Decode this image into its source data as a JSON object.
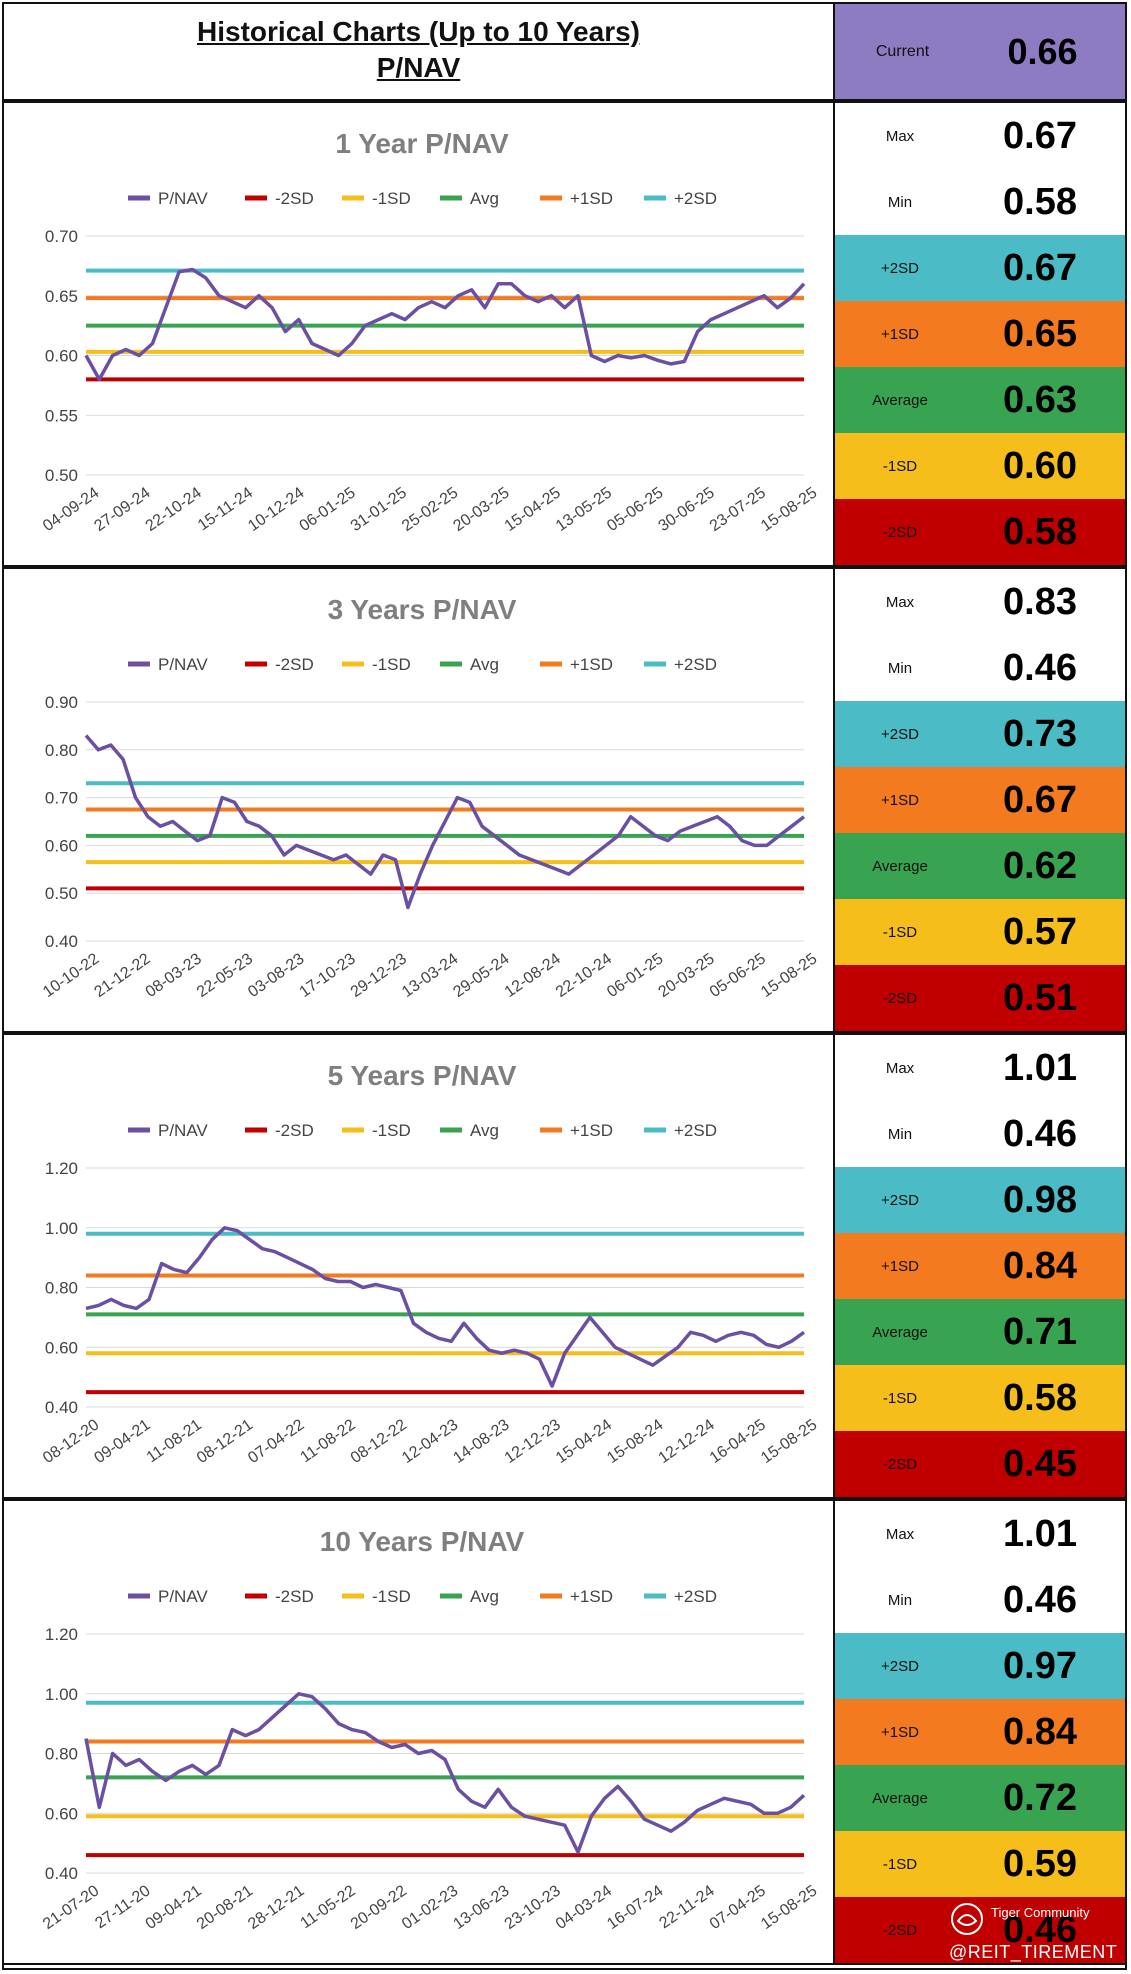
{
  "header": {
    "title": "Historical Charts (Up to 10 Years)",
    "subtitle": "P/NAV",
    "current_label": "Current",
    "current_value": "0.66"
  },
  "legend": [
    "P/NAV",
    "-2SD",
    "-1SD",
    "Avg",
    "+1SD",
    "+2SD"
  ],
  "colors": {
    "pnav": "#6a4fa3",
    "m2sd": "#c00000",
    "m1sd": "#f5be1a",
    "avg": "#38a351",
    "p1sd": "#f47a1f",
    "p2sd": "#4bbcc6",
    "current_bg": "#8e7cc3",
    "grid": "#d9d9d9"
  },
  "stat_labels": [
    "Max",
    "Min",
    "+2SD",
    "+1SD",
    "Average",
    "-1SD",
    "-2SD"
  ],
  "stat_colors": [
    "#ffffff",
    "#ffffff",
    "#4bbcc6",
    "#f47a1f",
    "#38a351",
    "#f5be1a",
    "#c00000"
  ],
  "watermark": {
    "brand": "Tiger Community",
    "handle": "@REIT_TIREMENT"
  },
  "chart_data": [
    {
      "type": "line",
      "title": "1 Year P/NAV",
      "ylim": [
        0.5,
        0.7
      ],
      "yticks": [
        "0.70",
        "0.65",
        "0.60",
        "0.55",
        "0.50"
      ],
      "ytick_values": [
        0.7,
        0.65,
        0.6,
        0.55,
        0.5
      ],
      "x_labels": [
        "04-09-24",
        "27-09-24",
        "22-10-24",
        "15-11-24",
        "10-12-24",
        "06-01-25",
        "31-01-25",
        "25-02-25",
        "20-03-25",
        "15-04-25",
        "13-05-25",
        "05-06-25",
        "30-06-25",
        "23-07-25",
        "15-08-25"
      ],
      "bands": {
        "m2sd": 0.58,
        "m1sd": 0.603,
        "avg": 0.625,
        "p1sd": 0.648,
        "p2sd": 0.671
      },
      "series_name": "P/NAV",
      "values": [
        0.6,
        0.58,
        0.6,
        0.605,
        0.6,
        0.61,
        0.64,
        0.67,
        0.672,
        0.665,
        0.65,
        0.645,
        0.64,
        0.65,
        0.64,
        0.62,
        0.63,
        0.61,
        0.605,
        0.6,
        0.61,
        0.625,
        0.63,
        0.635,
        0.63,
        0.64,
        0.645,
        0.64,
        0.65,
        0.655,
        0.64,
        0.66,
        0.66,
        0.65,
        0.645,
        0.65,
        0.64,
        0.65,
        0.6,
        0.595,
        0.6,
        0.598,
        0.6,
        0.596,
        0.593,
        0.595,
        0.62,
        0.63,
        0.635,
        0.64,
        0.645,
        0.65,
        0.64,
        0.648,
        0.66
      ],
      "stats": [
        "0.67",
        "0.58",
        "0.67",
        "0.65",
        "0.63",
        "0.60",
        "0.58"
      ]
    },
    {
      "type": "line",
      "title": "3 Years P/NAV",
      "ylim": [
        0.4,
        0.9
      ],
      "yticks": [
        "0.90",
        "0.80",
        "0.70",
        "0.60",
        "0.50",
        "0.40"
      ],
      "ytick_values": [
        0.9,
        0.8,
        0.7,
        0.6,
        0.5,
        0.4
      ],
      "x_labels": [
        "10-10-22",
        "21-12-22",
        "08-03-23",
        "22-05-23",
        "03-08-23",
        "17-10-23",
        "29-12-23",
        "13-03-24",
        "29-05-24",
        "12-08-24",
        "22-10-24",
        "06-01-25",
        "20-03-25",
        "05-06-25",
        "15-08-25"
      ],
      "bands": {
        "m2sd": 0.51,
        "m1sd": 0.565,
        "avg": 0.62,
        "p1sd": 0.675,
        "p2sd": 0.73
      },
      "series_name": "P/NAV",
      "values": [
        0.83,
        0.8,
        0.81,
        0.78,
        0.7,
        0.66,
        0.64,
        0.65,
        0.63,
        0.61,
        0.62,
        0.7,
        0.69,
        0.65,
        0.64,
        0.62,
        0.58,
        0.6,
        0.59,
        0.58,
        0.57,
        0.58,
        0.56,
        0.54,
        0.58,
        0.57,
        0.47,
        0.54,
        0.6,
        0.65,
        0.7,
        0.69,
        0.64,
        0.62,
        0.6,
        0.58,
        0.57,
        0.56,
        0.55,
        0.54,
        0.56,
        0.58,
        0.6,
        0.62,
        0.66,
        0.64,
        0.62,
        0.61,
        0.63,
        0.64,
        0.65,
        0.66,
        0.64,
        0.61,
        0.6,
        0.6,
        0.62,
        0.64,
        0.66
      ],
      "stats": [
        "0.83",
        "0.46",
        "0.73",
        "0.67",
        "0.62",
        "0.57",
        "0.51"
      ]
    },
    {
      "type": "line",
      "title": "5 Years P/NAV",
      "ylim": [
        0.4,
        1.2
      ],
      "yticks": [
        "1.20",
        "1.00",
        "0.80",
        "0.60",
        "0.40"
      ],
      "ytick_values": [
        1.2,
        1.0,
        0.8,
        0.6,
        0.4
      ],
      "x_labels": [
        "08-12-20",
        "09-04-21",
        "11-08-21",
        "08-12-21",
        "07-04-22",
        "11-08-22",
        "08-12-22",
        "12-04-23",
        "14-08-23",
        "12-12-23",
        "15-04-24",
        "15-08-24",
        "12-12-24",
        "16-04-25",
        "15-08-25"
      ],
      "bands": {
        "m2sd": 0.45,
        "m1sd": 0.58,
        "avg": 0.71,
        "p1sd": 0.84,
        "p2sd": 0.98
      },
      "series_name": "P/NAV",
      "values": [
        0.73,
        0.74,
        0.76,
        0.74,
        0.73,
        0.76,
        0.88,
        0.86,
        0.85,
        0.9,
        0.96,
        1.0,
        0.99,
        0.96,
        0.93,
        0.92,
        0.9,
        0.88,
        0.86,
        0.83,
        0.82,
        0.82,
        0.8,
        0.81,
        0.8,
        0.79,
        0.68,
        0.65,
        0.63,
        0.62,
        0.68,
        0.63,
        0.59,
        0.58,
        0.59,
        0.58,
        0.56,
        0.47,
        0.58,
        0.64,
        0.7,
        0.65,
        0.6,
        0.58,
        0.56,
        0.54,
        0.57,
        0.6,
        0.65,
        0.64,
        0.62,
        0.64,
        0.65,
        0.64,
        0.61,
        0.6,
        0.62,
        0.65
      ],
      "stats": [
        "1.01",
        "0.46",
        "0.98",
        "0.84",
        "0.71",
        "0.58",
        "0.45"
      ]
    },
    {
      "type": "line",
      "title": "10 Years P/NAV",
      "ylim": [
        0.4,
        1.2
      ],
      "yticks": [
        "1.20",
        "1.00",
        "0.80",
        "0.60",
        "0.40"
      ],
      "ytick_values": [
        1.2,
        1.0,
        0.8,
        0.6,
        0.4
      ],
      "x_labels": [
        "21-07-20",
        "27-11-20",
        "09-04-21",
        "20-08-21",
        "28-12-21",
        "11-05-22",
        "20-09-22",
        "01-02-23",
        "13-06-23",
        "23-10-23",
        "04-03-24",
        "16-07-24",
        "22-11-24",
        "07-04-25",
        "15-08-25"
      ],
      "bands": {
        "m2sd": 0.46,
        "m1sd": 0.59,
        "avg": 0.72,
        "p1sd": 0.84,
        "p2sd": 0.97
      },
      "series_name": "P/NAV",
      "values": [
        0.85,
        0.62,
        0.8,
        0.76,
        0.78,
        0.74,
        0.71,
        0.74,
        0.76,
        0.73,
        0.76,
        0.88,
        0.86,
        0.88,
        0.92,
        0.96,
        1.0,
        0.99,
        0.95,
        0.9,
        0.88,
        0.87,
        0.84,
        0.82,
        0.83,
        0.8,
        0.81,
        0.78,
        0.68,
        0.64,
        0.62,
        0.68,
        0.62,
        0.59,
        0.58,
        0.57,
        0.56,
        0.47,
        0.59,
        0.65,
        0.69,
        0.64,
        0.58,
        0.56,
        0.54,
        0.57,
        0.61,
        0.63,
        0.65,
        0.64,
        0.63,
        0.6,
        0.6,
        0.62,
        0.66
      ],
      "stats": [
        "1.01",
        "0.46",
        "0.97",
        "0.84",
        "0.72",
        "0.59",
        "0.46"
      ]
    }
  ]
}
